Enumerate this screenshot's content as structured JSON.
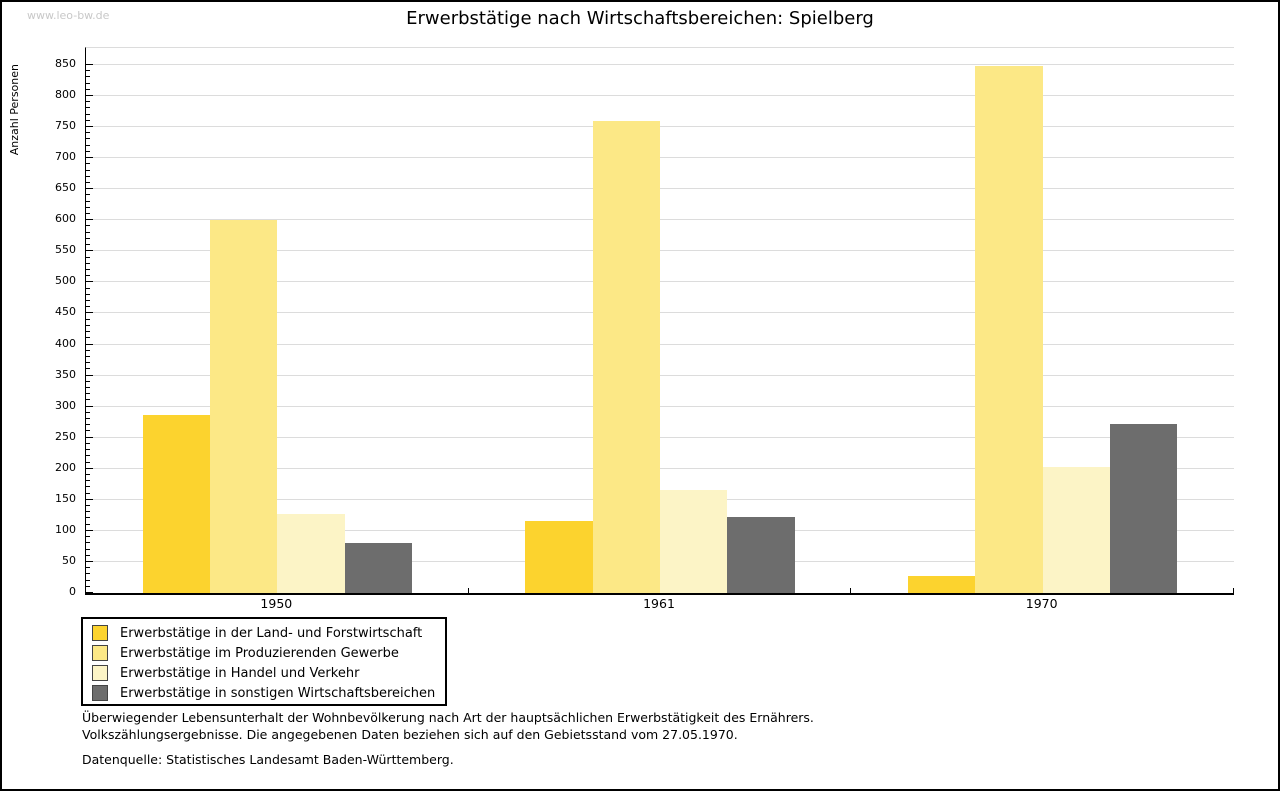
{
  "watermark": "www.leo-bw.de",
  "chart_data": {
    "type": "bar",
    "title": "Erwerbstätige nach Wirtschaftsbereichen: Spielberg",
    "xlabel": "",
    "ylabel": "Anzahl Personen",
    "categories": [
      "1950",
      "1961",
      "1970"
    ],
    "series": [
      {
        "name": "Erwerbstätige in der Land- und Forstwirtschaft",
        "color": "#FCD32E",
        "values": [
          287,
          116,
          27
        ]
      },
      {
        "name": "Erwerbstätige im Produzierenden Gewerbe",
        "color": "#FCE886",
        "values": [
          600,
          760,
          848
        ]
      },
      {
        "name": "Erwerbstätige in Handel und Verkehr",
        "color": "#FCF4C6",
        "values": [
          127,
          166,
          203
        ]
      },
      {
        "name": "Erwerbstätige in sonstigen Wirtschaftsbereichen",
        "color": "#6D6D6D",
        "values": [
          80,
          123,
          272
        ]
      }
    ],
    "ylim": [
      0,
      850
    ],
    "ytick_step": 50,
    "ytick_minor_step": 10,
    "grid": true,
    "legend_position": "bottom-left",
    "gridline_color": "#DCDCDC"
  },
  "footer": {
    "line1": "Überwiegender Lebensunterhalt der Wohnbevölkerung nach Art der hauptsächlichen Erwerbstätigkeit des Ernährers.",
    "line2": "Volkszählungsergebnisse. Die angegebenen Daten beziehen sich auf den Gebietsstand vom 27.05.1970.",
    "source": "Datenquelle: Statistisches Landesamt Baden-Württemberg."
  }
}
